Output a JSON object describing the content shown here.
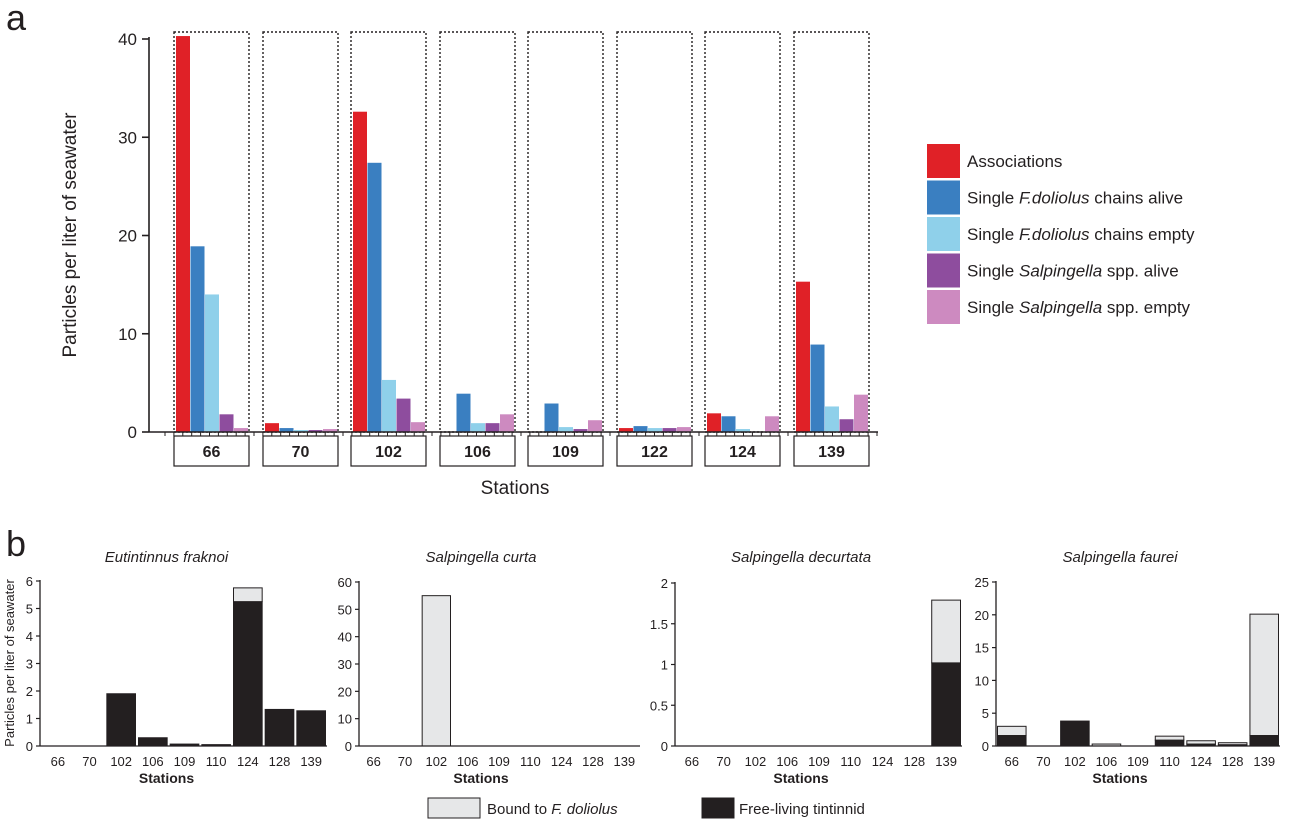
{
  "panel_a_letter": "a",
  "panel_b_letter": "b",
  "chart_data": [
    {
      "type": "bar",
      "panel": "a",
      "ylabel": "Particles per liter of seawater",
      "xlabel": "Stations",
      "ylim": [
        0,
        40
      ],
      "yticks": [
        0,
        10,
        20,
        30,
        40
      ],
      "categories": [
        "66",
        "70",
        "102",
        "106",
        "109",
        "122",
        "124",
        "139"
      ],
      "series": [
        {
          "name": "Associations",
          "color": "#e02127",
          "values": [
            40.3,
            0.9,
            32.6,
            0,
            0,
            0.4,
            1.9,
            15.3
          ]
        },
        {
          "name_parts": [
            "Single ",
            "F.doliolus",
            " chains alive"
          ],
          "color": "#3a7fc1",
          "values": [
            18.9,
            0.4,
            27.4,
            3.9,
            2.9,
            0.6,
            1.6,
            8.9
          ]
        },
        {
          "name_parts": [
            "Single ",
            "F.doliolus",
            " chains empty"
          ],
          "color": "#8fd0ea",
          "values": [
            14.0,
            0.2,
            5.3,
            0.9,
            0.5,
            0.4,
            0.3,
            2.6
          ]
        },
        {
          "name_parts": [
            "Single ",
            "Salpingella",
            " spp. alive"
          ],
          "color": "#8e4d9e",
          "values": [
            1.8,
            0.2,
            3.4,
            0.9,
            0.3,
            0.4,
            0,
            1.3
          ]
        },
        {
          "name_parts": [
            "Single ",
            "Salpingella",
            " spp. empty"
          ],
          "color": "#cd8ac0",
          "values": [
            0.4,
            0.3,
            1.0,
            1.8,
            1.2,
            0.5,
            1.6,
            3.8
          ]
        }
      ],
      "legend_position": "right",
      "grid": false
    },
    {
      "type": "bar",
      "stacked": true,
      "panel": "b",
      "title": "Eutintinnus fraknoi",
      "ylabel": "Particles per liter of seawater",
      "xlabel": "Stations",
      "ylim": [
        0,
        6
      ],
      "yticks": [
        "0",
        "1",
        "2",
        "3",
        "4",
        "5",
        "6"
      ],
      "categories": [
        "66",
        "70",
        "102",
        "106",
        "109",
        "110",
        "124",
        "128",
        "139"
      ],
      "series": [
        {
          "key": "free",
          "values": [
            0,
            0,
            1.9,
            0.3,
            0.07,
            0.05,
            5.25,
            1.33,
            1.28
          ]
        },
        {
          "key": "bound",
          "values": [
            0,
            0,
            0,
            0,
            0,
            0,
            0.5,
            0,
            0
          ]
        }
      ]
    },
    {
      "type": "bar",
      "stacked": true,
      "panel": "b",
      "title": "Salpingella curta",
      "xlabel": "Stations",
      "ylim": [
        0,
        60
      ],
      "yticks": [
        "0",
        "10",
        "20",
        "30",
        "40",
        "50",
        "60"
      ],
      "categories": [
        "66",
        "70",
        "102",
        "106",
        "109",
        "110",
        "124",
        "128",
        "139"
      ],
      "series": [
        {
          "key": "free",
          "values": [
            0,
            0,
            0,
            0,
            0,
            0,
            0,
            0,
            0
          ]
        },
        {
          "key": "bound",
          "values": [
            0,
            0,
            55,
            0,
            0,
            0,
            0,
            0,
            0
          ]
        }
      ]
    },
    {
      "type": "bar",
      "stacked": true,
      "panel": "b",
      "title": "Salpingella decurtata",
      "xlabel": "Stations",
      "ylim": [
        0,
        2
      ],
      "yticks": [
        "0",
        "0.5",
        "1",
        "1.5",
        "2"
      ],
      "categories": [
        "66",
        "70",
        "102",
        "106",
        "109",
        "110",
        "124",
        "128",
        "139"
      ],
      "series": [
        {
          "key": "free",
          "values": [
            0,
            0,
            0,
            0,
            0,
            0,
            0,
            0,
            1.02
          ]
        },
        {
          "key": "bound",
          "values": [
            0,
            0,
            0,
            0,
            0,
            0,
            0,
            0,
            0.77
          ]
        }
      ]
    },
    {
      "type": "bar",
      "stacked": true,
      "panel": "b",
      "title": "Salpingella faurei",
      "xlabel": "Stations",
      "ylim": [
        0,
        25
      ],
      "yticks": [
        "0",
        "5",
        "10",
        "15",
        "20",
        "25"
      ],
      "categories": [
        "66",
        "70",
        "102",
        "106",
        "109",
        "110",
        "124",
        "128",
        "139"
      ],
      "series": [
        {
          "key": "free",
          "values": [
            1.6,
            0,
            3.8,
            0,
            0,
            0.9,
            0.3,
            0.2,
            1.6
          ]
        },
        {
          "key": "bound",
          "values": [
            1.4,
            0,
            0,
            0.3,
            0,
            0.6,
            0.5,
            0.3,
            18.5
          ]
        }
      ]
    }
  ],
  "panel_b_legend": [
    {
      "key": "bound",
      "color": "#e6e7e8",
      "parts": [
        "Bound to ",
        "F. doliolus"
      ]
    },
    {
      "key": "free",
      "color": "#231f20",
      "parts": [
        "Free-living tintinnid"
      ]
    }
  ]
}
